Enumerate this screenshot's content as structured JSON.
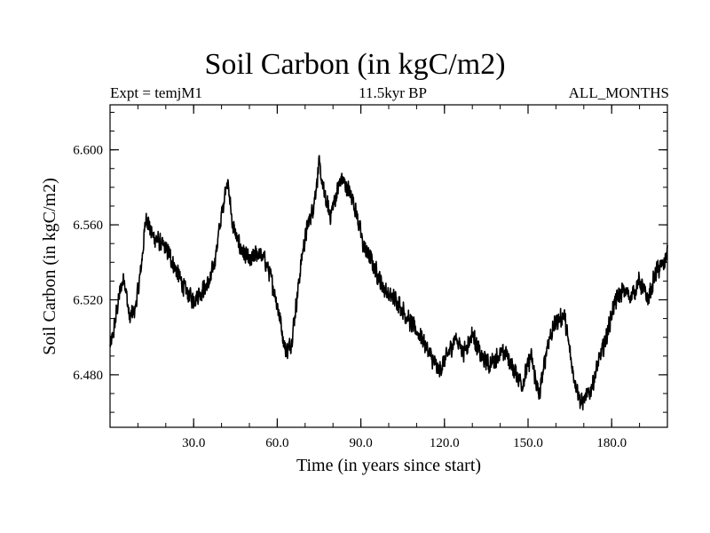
{
  "chart_data": {
    "type": "line",
    "title": "Soil Carbon (in kgC/m2)",
    "subtitle_left": "Expt = temjM1",
    "subtitle_center": "11.5kyr BP",
    "subtitle_right": "ALL_MONTHS",
    "xlabel": "Time (in years since start)",
    "ylabel": "Soil Carbon (in kgC/m2)",
    "xlim": [
      0,
      200
    ],
    "ylim": [
      6.452,
      6.624
    ],
    "x_ticks": [
      30,
      60,
      90,
      120,
      150,
      180
    ],
    "x_tick_labels": [
      "30.0",
      "60.0",
      "90.0",
      "120.0",
      "150.0",
      "180.0"
    ],
    "y_ticks": [
      6.48,
      6.52,
      6.56,
      6.6
    ],
    "y_tick_labels": [
      "6.480",
      "6.520",
      "6.560",
      "6.600"
    ],
    "grid": false,
    "series": [
      {
        "name": "Soil Carbon",
        "color": "#000000",
        "noise_amplitude": 0.006,
        "x": [
          0,
          1,
          3,
          5,
          7,
          9,
          11,
          13,
          15,
          18,
          21,
          24,
          27,
          30,
          33,
          36,
          38,
          40,
          42,
          44,
          46,
          48,
          50,
          53,
          56,
          59,
          61,
          63,
          65,
          67,
          69,
          71,
          73,
          75,
          77,
          79,
          81,
          83,
          85,
          87,
          89,
          91,
          94,
          97,
          100,
          103,
          106,
          109,
          112,
          115,
          118,
          121,
          124,
          127,
          130,
          133,
          136,
          139,
          142,
          145,
          148,
          151,
          154,
          157,
          160,
          163,
          166,
          169,
          172,
          175,
          178,
          181,
          184,
          187,
          190,
          193,
          196,
          199,
          200
        ],
        "y": [
          6.495,
          6.5,
          6.52,
          6.533,
          6.51,
          6.515,
          6.535,
          6.565,
          6.555,
          6.55,
          6.545,
          6.535,
          6.525,
          6.52,
          6.525,
          6.53,
          6.545,
          6.565,
          6.585,
          6.56,
          6.55,
          6.545,
          6.54,
          6.545,
          6.54,
          6.525,
          6.51,
          6.492,
          6.497,
          6.52,
          6.545,
          6.56,
          6.57,
          6.592,
          6.575,
          6.565,
          6.575,
          6.585,
          6.58,
          6.575,
          6.562,
          6.548,
          6.54,
          6.53,
          6.522,
          6.52,
          6.512,
          6.505,
          6.5,
          6.49,
          6.482,
          6.49,
          6.5,
          6.492,
          6.502,
          6.49,
          6.485,
          6.49,
          6.492,
          6.482,
          6.475,
          6.49,
          6.468,
          6.497,
          6.508,
          6.512,
          6.482,
          6.465,
          6.47,
          6.485,
          6.5,
          6.518,
          6.525,
          6.522,
          6.53,
          6.52,
          6.535,
          6.54,
          6.545
        ]
      }
    ]
  }
}
